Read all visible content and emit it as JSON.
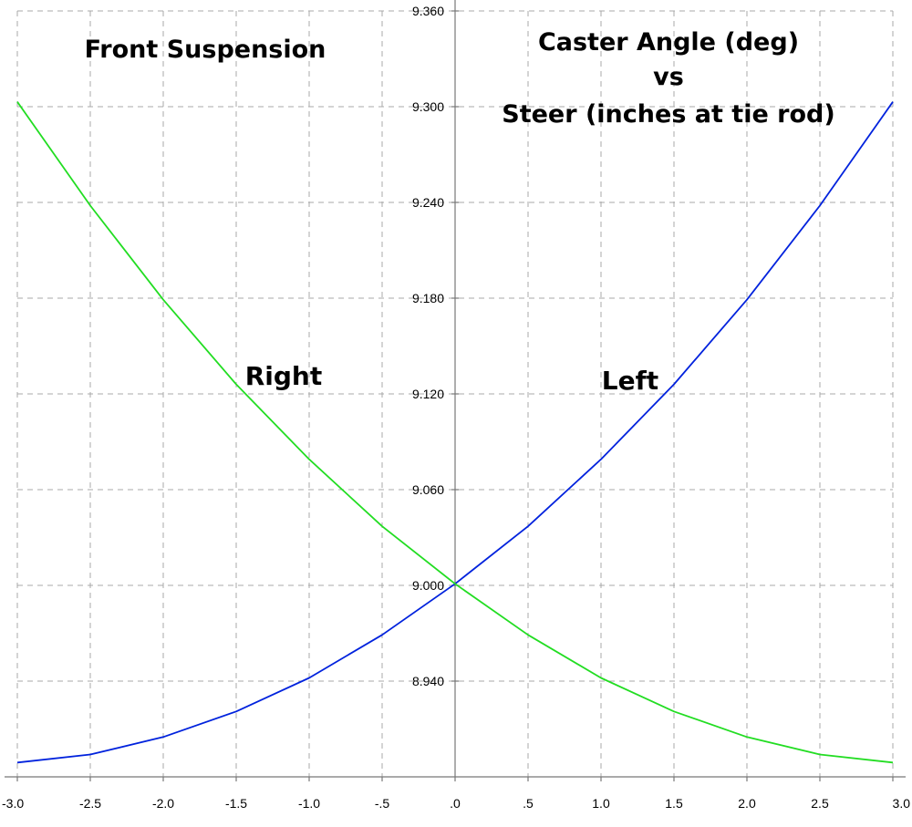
{
  "chart_data": {
    "type": "line",
    "title": "Front Suspension",
    "subtitle_lines": [
      "Caster Angle (deg)",
      "vs",
      "Steer (inches at tie rod)"
    ],
    "x_tick_labels": [
      "-3.0",
      "-2.5",
      "-2.0",
      "-1.5",
      "-1.0",
      "-.5",
      ".0",
      ".5",
      "1.0",
      "1.5",
      "2.0",
      "2.5",
      "3.0"
    ],
    "y_tick_labels": [
      "8.940",
      "9.000",
      "9.060",
      "9.120",
      "9.180",
      "9.240",
      "9.300",
      "9.360"
    ],
    "xlim": [
      -3.0,
      3.0
    ],
    "ylim": [
      8.88,
      9.36
    ],
    "grid": true,
    "series": [
      {
        "name": "Left",
        "color": "#0022dd",
        "x": [
          -3.0,
          -2.5,
          -2.0,
          -1.5,
          -1.0,
          -0.5,
          0.0,
          0.5,
          1.0,
          1.5,
          2.0,
          2.5,
          3.0
        ],
        "y": [
          8.889,
          8.894,
          8.905,
          8.921,
          8.942,
          8.969,
          9.001,
          9.037,
          9.079,
          9.126,
          9.179,
          9.238,
          9.303
        ]
      },
      {
        "name": "Right",
        "color": "#22dd22",
        "x": [
          -3.0,
          -2.5,
          -2.0,
          -1.5,
          -1.0,
          -0.5,
          0.0,
          0.5,
          1.0,
          1.5,
          2.0,
          2.5,
          3.0
        ],
        "y": [
          9.303,
          9.238,
          9.179,
          9.126,
          9.079,
          9.037,
          9.001,
          8.969,
          8.942,
          8.921,
          8.905,
          8.894,
          8.889
        ]
      }
    ]
  }
}
